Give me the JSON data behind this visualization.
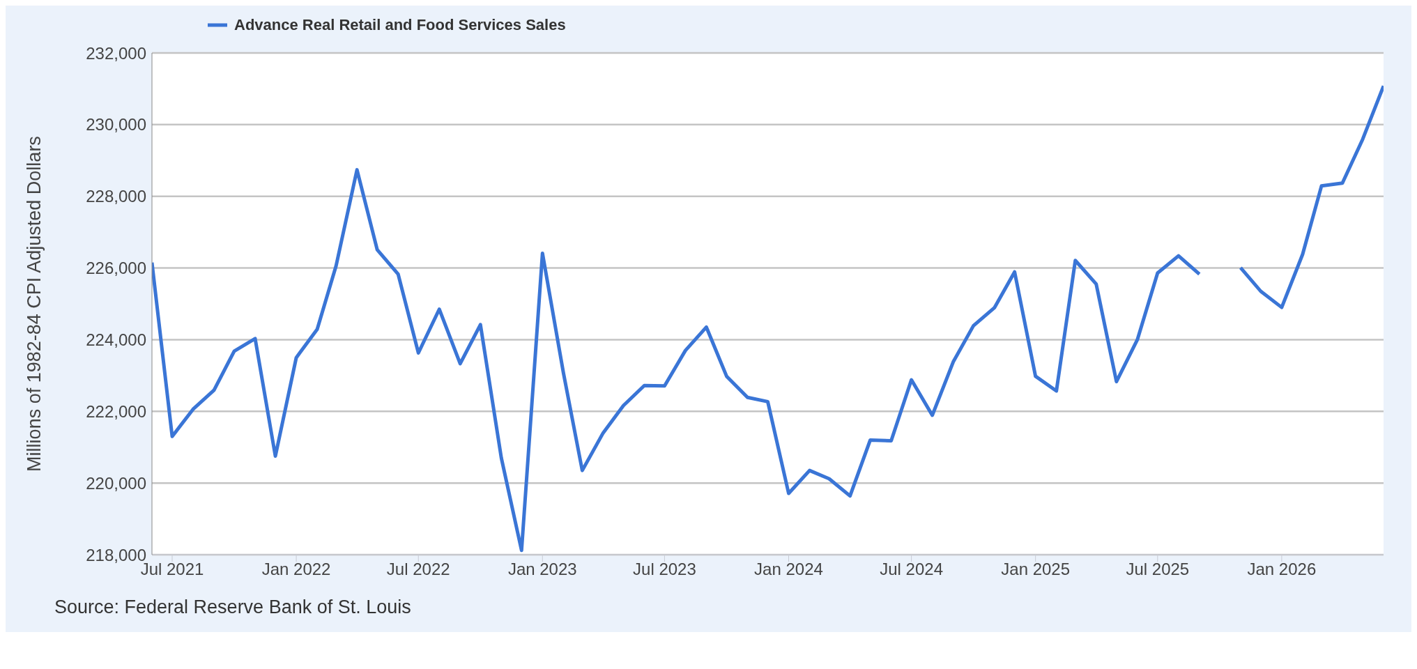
{
  "chart_data": {
    "type": "line",
    "ylabel": "Millions of 1982-84 CPI Adjusted Dollars",
    "annotations": [
      "Source: Federal Reserve Bank of St. Louis"
    ],
    "x": [
      "2021-06",
      "2021-07",
      "2021-08",
      "2021-09",
      "2021-10",
      "2021-11",
      "2021-12",
      "2022-01",
      "2022-02",
      "2022-03",
      "2022-04",
      "2022-05",
      "2022-06",
      "2022-07",
      "2022-08",
      "2022-09",
      "2022-10",
      "2022-11",
      "2022-12",
      "2023-01",
      "2023-02",
      "2023-03",
      "2023-04",
      "2023-05",
      "2023-06",
      "2023-07",
      "2023-08",
      "2023-09",
      "2023-10",
      "2023-11",
      "2023-12",
      "2024-01",
      "2024-02",
      "2024-03",
      "2024-04",
      "2024-05",
      "2024-06",
      "2024-07",
      "2024-08",
      "2024-09",
      "2024-10",
      "2024-11",
      "2024-12",
      "2025-01",
      "2025-02",
      "2025-03",
      "2025-04",
      "2025-05",
      "2025-06",
      "2025-07",
      "2025-08",
      "2025-09",
      "2025-10",
      "2025-11",
      "2025-12",
      "2026-01",
      "2026-02",
      "2026-03",
      "2026-04",
      "2026-05",
      "2026-06"
    ],
    "series": [
      {
        "name": "Advance Real Retail and Food Services Sales",
        "color": "#3a75d6",
        "values": [
          226150,
          221300,
          222060,
          222590,
          223680,
          224030,
          220750,
          223500,
          224290,
          226060,
          228740,
          226510,
          225830,
          223630,
          224850,
          223330,
          224420,
          220700,
          218120,
          226410,
          223080,
          220350,
          221400,
          222160,
          222720,
          222710,
          223700,
          224350,
          222980,
          222390,
          222270,
          219710,
          220350,
          220120,
          219640,
          221200,
          221180,
          222880,
          221890,
          223380,
          224390,
          224890,
          225890,
          222980,
          222570,
          226210,
          225550,
          222830,
          224000,
          225860,
          226340,
          225830,
          null,
          226010,
          225350,
          224900,
          226380,
          228290,
          228370,
          229590,
          231080
        ]
      }
    ],
    "xlim": [
      "2021-06",
      "2026-06"
    ],
    "xticks": [
      {
        "value": "2021-07",
        "label": "Jul 2021"
      },
      {
        "value": "2022-01",
        "label": "Jan 2022"
      },
      {
        "value": "2022-07",
        "label": "Jul 2022"
      },
      {
        "value": "2023-01",
        "label": "Jan 2023"
      },
      {
        "value": "2023-07",
        "label": "Jul 2023"
      },
      {
        "value": "2024-01",
        "label": "Jan 2024"
      },
      {
        "value": "2024-07",
        "label": "Jul 2024"
      },
      {
        "value": "2025-01",
        "label": "Jan 2025"
      },
      {
        "value": "2025-07",
        "label": "Jul 2025"
      },
      {
        "value": "2026-01",
        "label": "Jan 2026"
      }
    ],
    "ylim": [
      218000,
      232000
    ],
    "yticks": [
      {
        "value": 218000,
        "label": "218,000"
      },
      {
        "value": 220000,
        "label": "220,000"
      },
      {
        "value": 222000,
        "label": "222,000"
      },
      {
        "value": 224000,
        "label": "224,000"
      },
      {
        "value": 226000,
        "label": "226,000"
      },
      {
        "value": 228000,
        "label": "228,000"
      },
      {
        "value": 230000,
        "label": "230,000"
      },
      {
        "value": 232000,
        "label": "232,000"
      }
    ],
    "grid": "y",
    "legend": "top left",
    "marker": "none",
    "line_style": "solid"
  }
}
